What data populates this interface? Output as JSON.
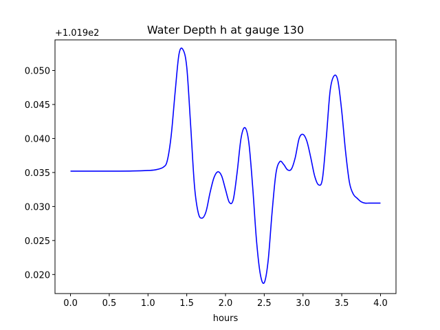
{
  "chart_data": {
    "type": "line",
    "title": "Water Depth h at gauge 130",
    "xlabel": "hours",
    "ylabel": "",
    "y_offset_label": "+1.019e2",
    "xlim": [
      -0.2,
      4.2
    ],
    "ylim": [
      0.0172,
      0.0545
    ],
    "x_ticks": [
      0.0,
      0.5,
      1.0,
      1.5,
      2.0,
      2.5,
      3.0,
      3.5,
      4.0
    ],
    "x_tick_labels": [
      "0.0",
      "0.5",
      "1.0",
      "1.5",
      "2.0",
      "2.5",
      "3.0",
      "3.5",
      "4.0"
    ],
    "y_ticks": [
      0.02,
      0.025,
      0.03,
      0.035,
      0.04,
      0.045,
      0.05
    ],
    "y_tick_labels": [
      "0.020",
      "0.025",
      "0.030",
      "0.035",
      "0.040",
      "0.045",
      "0.050"
    ],
    "grid": false,
    "series": [
      {
        "color": "#0000ff",
        "x": [
          0.0,
          0.2,
          0.4,
          0.6,
          0.8,
          1.0,
          1.1,
          1.2,
          1.25,
          1.3,
          1.35,
          1.4,
          1.45,
          1.5,
          1.55,
          1.6,
          1.65,
          1.7,
          1.75,
          1.8,
          1.85,
          1.9,
          1.95,
          2.0,
          2.05,
          2.1,
          2.15,
          2.2,
          2.25,
          2.3,
          2.35,
          2.4,
          2.45,
          2.5,
          2.55,
          2.6,
          2.65,
          2.7,
          2.75,
          2.8,
          2.85,
          2.9,
          2.95,
          3.0,
          3.05,
          3.1,
          3.15,
          3.2,
          3.25,
          3.3,
          3.35,
          3.4,
          3.45,
          3.5,
          3.55,
          3.6,
          3.65,
          3.7,
          3.75,
          3.8,
          3.85,
          3.9,
          3.95,
          4.0
        ],
        "y": [
          0.0352,
          0.0352,
          0.0352,
          0.0352,
          0.03522,
          0.0353,
          0.0354,
          0.0358,
          0.0368,
          0.0405,
          0.0468,
          0.0524,
          0.0531,
          0.0505,
          0.042,
          0.033,
          0.029,
          0.0283,
          0.0293,
          0.032,
          0.0342,
          0.0351,
          0.0345,
          0.0325,
          0.0306,
          0.031,
          0.035,
          0.04,
          0.0416,
          0.0395,
          0.033,
          0.025,
          0.02,
          0.0188,
          0.022,
          0.029,
          0.0348,
          0.0366,
          0.0362,
          0.0354,
          0.0355,
          0.0372,
          0.04,
          0.0406,
          0.0396,
          0.0372,
          0.0345,
          0.0332,
          0.034,
          0.04,
          0.047,
          0.0492,
          0.0485,
          0.044,
          0.038,
          0.0335,
          0.0318,
          0.0312,
          0.0307,
          0.0305,
          0.0305,
          0.0305,
          0.0305,
          0.0305
        ]
      }
    ]
  }
}
